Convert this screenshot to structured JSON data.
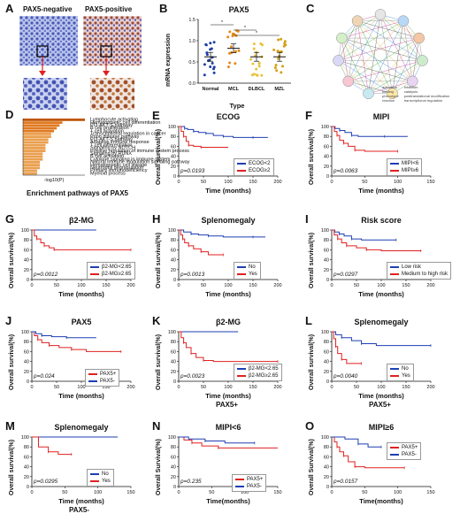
{
  "panel_labels": [
    "A",
    "B",
    "C",
    "D",
    "E",
    "F",
    "G",
    "H",
    "I",
    "J",
    "K",
    "L",
    "M",
    "N",
    "O"
  ],
  "ihc": {
    "neg_label": "PAX5-negative",
    "pos_label": "PAX5-positive"
  },
  "mrna": {
    "title": "PAX5",
    "ylabel": "mRNA expression",
    "xlabel": "Type",
    "sig": "*",
    "categories": [
      "Normal",
      "MCL",
      "DLBCL",
      "MZL"
    ],
    "y_ticks": [
      "0.0",
      "0.5",
      "1.0",
      "1.5"
    ],
    "colors": {
      "Normal": "#1f3fa8",
      "MCL": "#e58a1a",
      "DLBCL": "#e8c23a",
      "MZL": "#d4a017"
    }
  },
  "network": {
    "legend_left": [
      "activation",
      "binding",
      "phenotype",
      "reaction"
    ],
    "legend_right": [
      "inhibition",
      "catalysis",
      "posttranslational modification",
      "transcriptional regulation"
    ]
  },
  "enrich": {
    "caption": "Enrichment pathways of PAX5",
    "terms": [
      "Lymphocyte activation",
      "Hematopoietic cell differentiation",
      "PI3-AKT-S pathway",
      "B cell proliferation",
      "T cell activation",
      "Transcriptional regulation in cancer",
      "Prion disease pathway",
      "PI3-AKT-S pathway",
      "Adaptive immune response",
      "T cell differentiation",
      "Signaling by NOTCH",
      "Positive regulation of immune system process",
      "Signaling by RUNX",
      "B cell activation",
      "Cytokine signaling in immune system",
      "Natural immune modulation signaling pathway",
      "Hematopoietic cell lineage",
      "Neutrophil degranulation",
      "Primary immunodeficiency",
      "Myeloid process"
    ],
    "axis": "-log10(P)"
  },
  "km": {
    "ylabel": "Overall survival(%)",
    "ylabel_alt": "Overall Survival(%)",
    "xlabel": "Time (months)",
    "xlabel_alt": "Time(months)",
    "y_ticks": [
      "0",
      "20",
      "40",
      "60",
      "80",
      "100"
    ],
    "colors": {
      "blue": "#1f3fb3",
      "red": "#e02020"
    }
  },
  "chart_data": [
    {
      "panel": "E",
      "type": "line",
      "title": "ECOG",
      "pvalue": "p=0.0193",
      "x_ticks": [
        "0",
        "50",
        "100",
        "150",
        "200"
      ],
      "xlim": [
        0,
        200
      ],
      "ylim": [
        0,
        100
      ],
      "series": [
        {
          "name": "ECOG<2",
          "color": "blue",
          "steps": [
            [
              0,
              100
            ],
            [
              8,
              100
            ],
            [
              12,
              96
            ],
            [
              18,
              94
            ],
            [
              30,
              90
            ],
            [
              40,
              88
            ],
            [
              55,
              86
            ],
            [
              70,
              82
            ],
            [
              90,
              80
            ],
            [
              110,
              78
            ],
            [
              150,
              78
            ],
            [
              180,
              78
            ]
          ]
        },
        {
          "name": "ECOG≥2",
          "color": "red",
          "steps": [
            [
              0,
              100
            ],
            [
              5,
              90
            ],
            [
              10,
              80
            ],
            [
              15,
              70
            ],
            [
              20,
              62
            ],
            [
              30,
              60
            ],
            [
              45,
              58
            ],
            [
              100,
              58
            ]
          ]
        }
      ]
    },
    {
      "panel": "F",
      "type": "line",
      "title": "MIPI",
      "pvalue": "p=0.0063",
      "x_ticks": [
        "0",
        "50",
        "100",
        "150"
      ],
      "xlim": [
        0,
        150
      ],
      "ylim": [
        0,
        100
      ],
      "series": [
        {
          "name": "MIPI<6",
          "color": "blue",
          "steps": [
            [
              0,
              100
            ],
            [
              5,
              96
            ],
            [
              12,
              92
            ],
            [
              20,
              88
            ],
            [
              30,
              82
            ],
            [
              40,
              80
            ],
            [
              80,
              80
            ],
            [
              115,
              80
            ]
          ]
        },
        {
          "name": "MIPI≥6",
          "color": "red",
          "steps": [
            [
              0,
              100
            ],
            [
              4,
              90
            ],
            [
              8,
              82
            ],
            [
              12,
              72
            ],
            [
              18,
              66
            ],
            [
              25,
              60
            ],
            [
              35,
              52
            ],
            [
              50,
              50
            ],
            [
              100,
              50
            ]
          ]
        }
      ]
    },
    {
      "panel": "G",
      "type": "line",
      "title": "β2-MG",
      "pvalue": "p=0.0012",
      "x_ticks": [
        "0",
        "50",
        "100",
        "150",
        "200"
      ],
      "xlim": [
        0,
        200
      ],
      "ylim": [
        0,
        100
      ],
      "series": [
        {
          "name": "β2-MG<2.65",
          "color": "blue",
          "steps": [
            [
              0,
              100
            ],
            [
              130,
              100
            ]
          ]
        },
        {
          "name": "β2-MG≥2.65",
          "color": "red",
          "steps": [
            [
              0,
              100
            ],
            [
              5,
              88
            ],
            [
              10,
              82
            ],
            [
              18,
              74
            ],
            [
              25,
              68
            ],
            [
              35,
              64
            ],
            [
              45,
              60
            ],
            [
              60,
              60
            ],
            [
              200,
              60
            ]
          ]
        }
      ]
    },
    {
      "panel": "H",
      "type": "line",
      "title": "Splenomegaly",
      "pvalue": "p=0.0013",
      "x_ticks": [
        "0",
        "50",
        "100",
        "150",
        "200"
      ],
      "xlim": [
        0,
        200
      ],
      "ylim": [
        0,
        100
      ],
      "series": [
        {
          "name": "No",
          "color": "blue",
          "steps": [
            [
              0,
              100
            ],
            [
              10,
              96
            ],
            [
              25,
              92
            ],
            [
              40,
              90
            ],
            [
              60,
              88
            ],
            [
              90,
              86
            ],
            [
              150,
              86
            ],
            [
              175,
              86
            ]
          ]
        },
        {
          "name": "Yes",
          "color": "red",
          "steps": [
            [
              0,
              100
            ],
            [
              4,
              90
            ],
            [
              8,
              82
            ],
            [
              12,
              74
            ],
            [
              20,
              68
            ],
            [
              30,
              62
            ],
            [
              45,
              56
            ],
            [
              60,
              50
            ],
            [
              90,
              50
            ]
          ]
        }
      ]
    },
    {
      "panel": "I",
      "type": "line",
      "title": "Risk score",
      "pvalue": "p=0.0297",
      "x_ticks": [
        "0",
        "50",
        "100",
        "150",
        "200"
      ],
      "xlim": [
        0,
        200
      ],
      "ylim": [
        0,
        100
      ],
      "series": [
        {
          "name": "Low risk",
          "color": "blue",
          "steps": [
            [
              0,
              100
            ],
            [
              6,
              96
            ],
            [
              15,
              92
            ],
            [
              25,
              88
            ],
            [
              40,
              82
            ],
            [
              60,
              80
            ],
            [
              130,
              80
            ]
          ]
        },
        {
          "name": "Medium to high risk",
          "color": "red",
          "steps": [
            [
              0,
              100
            ],
            [
              5,
              90
            ],
            [
              12,
              82
            ],
            [
              20,
              74
            ],
            [
              30,
              68
            ],
            [
              50,
              64
            ],
            [
              70,
              60
            ],
            [
              100,
              58
            ],
            [
              180,
              58
            ]
          ]
        }
      ]
    },
    {
      "panel": "J",
      "type": "line",
      "title": "PAX5",
      "pvalue": "p=0.024",
      "x_ticks": [
        "0",
        "50",
        "100",
        "150",
        "200"
      ],
      "xlim": [
        0,
        200
      ],
      "ylim": [
        0,
        100
      ],
      "series": [
        {
          "name": "PAX5+",
          "color": "red",
          "steps": [
            [
              0,
              100
            ],
            [
              5,
              92
            ],
            [
              12,
              84
            ],
            [
              20,
              78
            ],
            [
              35,
              72
            ],
            [
              55,
              68
            ],
            [
              80,
              64
            ],
            [
              110,
              60
            ],
            [
              180,
              60
            ]
          ]
        },
        {
          "name": "PAX5-",
          "color": "blue",
          "steps": [
            [
              0,
              100
            ],
            [
              8,
              96
            ],
            [
              20,
              92
            ],
            [
              40,
              90
            ],
            [
              70,
              88
            ],
            [
              130,
              88
            ]
          ]
        }
      ]
    },
    {
      "panel": "K",
      "type": "line",
      "title": "β2-MG",
      "subtitle": "PAX5+",
      "pvalue": "p=0.0023",
      "x_ticks": [
        "0",
        "50",
        "100",
        "150",
        "200"
      ],
      "xlim": [
        0,
        200
      ],
      "ylim": [
        0,
        100
      ],
      "series": [
        {
          "name": "β2-MG<2.65",
          "color": "blue",
          "steps": [
            [
              0,
              100
            ],
            [
              120,
              100
            ]
          ]
        },
        {
          "name": "β2-MG≥2.65",
          "color": "red",
          "steps": [
            [
              0,
              100
            ],
            [
              5,
              88
            ],
            [
              10,
              78
            ],
            [
              15,
              68
            ],
            [
              25,
              56
            ],
            [
              35,
              48
            ],
            [
              50,
              42
            ],
            [
              70,
              40
            ],
            [
              200,
              40
            ]
          ]
        }
      ]
    },
    {
      "panel": "L",
      "type": "line",
      "title": "Splenomegaly",
      "subtitle": "PAX5+",
      "pvalue": "p=0.0040",
      "x_ticks": [
        "0",
        "50",
        "100",
        "150",
        "200"
      ],
      "xlim": [
        0,
        200
      ],
      "ylim": [
        0,
        100
      ],
      "series": [
        {
          "name": "No",
          "color": "blue",
          "steps": [
            [
              0,
              100
            ],
            [
              8,
              94
            ],
            [
              20,
              88
            ],
            [
              40,
              82
            ],
            [
              60,
              76
            ],
            [
              90,
              72
            ],
            [
              200,
              72
            ]
          ]
        },
        {
          "name": "Yes",
          "color": "red",
          "steps": [
            [
              0,
              100
            ],
            [
              4,
              86
            ],
            [
              8,
              70
            ],
            [
              12,
              56
            ],
            [
              20,
              44
            ],
            [
              30,
              36
            ],
            [
              60,
              36
            ]
          ]
        }
      ]
    },
    {
      "panel": "M",
      "type": "line",
      "title": "Splenomegaly",
      "subtitle": "PAX5-",
      "pvalue": "p=0.0295",
      "x_ticks": [
        "0",
        "50",
        "100",
        "150"
      ],
      "xlim": [
        0,
        150
      ],
      "ylim": [
        0,
        100
      ],
      "series": [
        {
          "name": "No",
          "color": "blue",
          "steps": [
            [
              0,
              100
            ],
            [
              130,
              100
            ]
          ]
        },
        {
          "name": "Yes",
          "color": "red",
          "steps": [
            [
              0,
              100
            ],
            [
              10,
              80
            ],
            [
              25,
              70
            ],
            [
              40,
              65
            ],
            [
              60,
              65
            ]
          ]
        }
      ]
    },
    {
      "panel": "N",
      "type": "line",
      "title": "MIPI<6",
      "pvalue": "p=0.235",
      "x_ticks": [
        "0",
        "50",
        "100",
        "150"
      ],
      "xlim": [
        0,
        150
      ],
      "ylim": [
        0,
        100
      ],
      "series": [
        {
          "name": "PAX5+",
          "color": "red",
          "steps": [
            [
              0,
              100
            ],
            [
              8,
              94
            ],
            [
              20,
              88
            ],
            [
              35,
              82
            ],
            [
              60,
              78
            ],
            [
              150,
              78
            ]
          ]
        },
        {
          "name": "PAX5-",
          "color": "blue",
          "steps": [
            [
              0,
              100
            ],
            [
              15,
              96
            ],
            [
              40,
              92
            ],
            [
              70,
              88
            ],
            [
              115,
              88
            ]
          ]
        }
      ]
    },
    {
      "panel": "O",
      "type": "line",
      "title": "MIPI≥6",
      "pvalue": "p=0.0157",
      "x_ticks": [
        "0",
        "50",
        "100",
        "150"
      ],
      "xlim": [
        0,
        150
      ],
      "ylim": [
        0,
        100
      ],
      "series": [
        {
          "name": "PAX5+",
          "color": "red",
          "steps": [
            [
              0,
              100
            ],
            [
              4,
              90
            ],
            [
              8,
              80
            ],
            [
              12,
              70
            ],
            [
              18,
              62
            ],
            [
              25,
              50
            ],
            [
              35,
              40
            ],
            [
              50,
              38
            ],
            [
              110,
              38
            ]
          ]
        },
        {
          "name": "PAX5-",
          "color": "blue",
          "steps": [
            [
              0,
              100
            ],
            [
              20,
              96
            ],
            [
              40,
              86
            ],
            [
              55,
              80
            ],
            [
              75,
              80
            ]
          ]
        }
      ]
    }
  ]
}
